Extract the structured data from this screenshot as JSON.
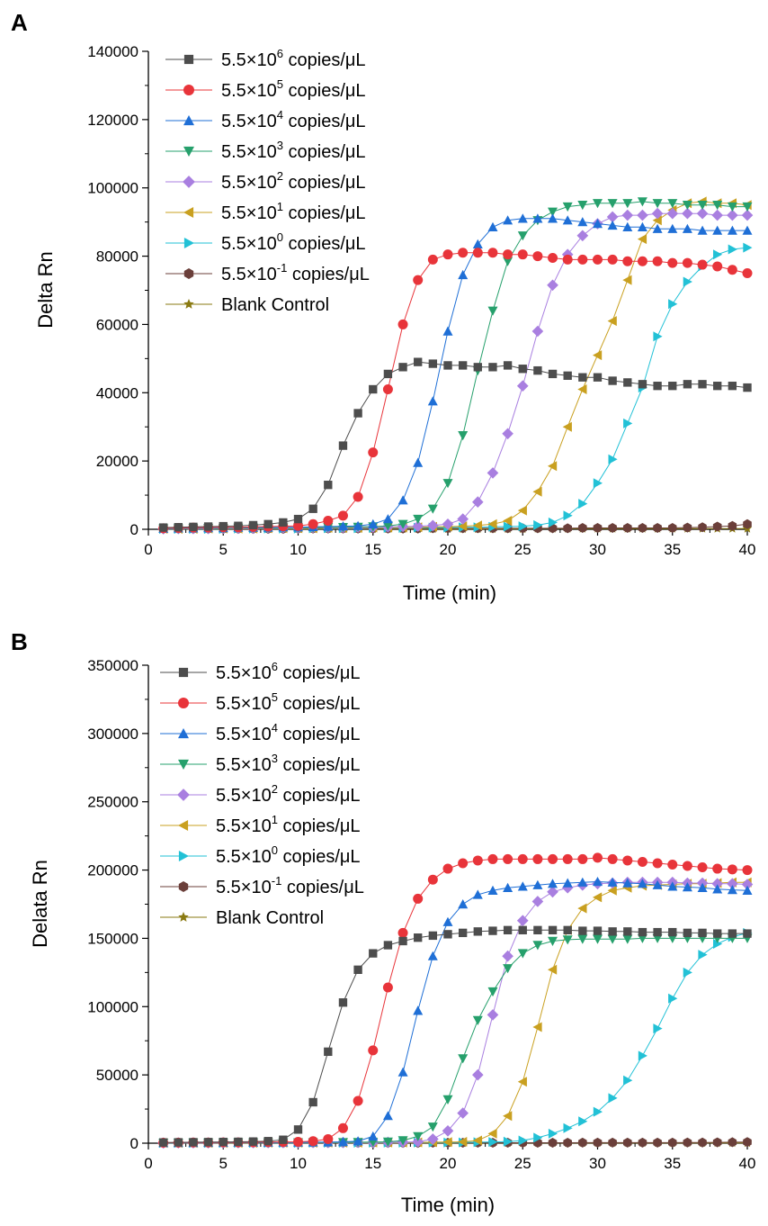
{
  "chart_data": [
    {
      "type": "line",
      "panel_label": "A",
      "title": "",
      "xlabel": "Time (min)",
      "ylabel": "Delta Rn",
      "xlim": [
        0,
        40
      ],
      "ylim": [
        0,
        140000
      ],
      "xticks": [
        0,
        5,
        10,
        15,
        20,
        25,
        30,
        35,
        40
      ],
      "yticks": [
        0,
        20000,
        40000,
        60000,
        80000,
        100000,
        120000,
        140000
      ],
      "legend_position": "top-left",
      "series": [
        {
          "name": "5.5×10⁶ copies/μL",
          "legend_base": "5.5×10",
          "legend_exp": "6",
          "legend_unit": " copies/μL",
          "marker": "square",
          "color": "#4d4d4d",
          "x0": 1,
          "values": [
            500,
            600,
            700,
            800,
            900,
            1000,
            1200,
            1500,
            2000,
            3000,
            6000,
            13000,
            24500,
            34000,
            41000,
            45500,
            47500,
            49000,
            48500,
            48000,
            48000,
            47500,
            47500,
            48000,
            47000,
            46500,
            45500,
            45000,
            44500,
            44500,
            43500,
            43000,
            42500,
            42000,
            42000,
            42500,
            42500,
            42000,
            42000,
            41500
          ]
        },
        {
          "name": "5.5×10⁵ copies/μL",
          "legend_base": "5.5×10",
          "legend_exp": "5",
          "legend_unit": " copies/μL",
          "marker": "circle",
          "color": "#e8343a",
          "x0": 1,
          "values": [
            300,
            400,
            500,
            500,
            600,
            600,
            700,
            800,
            900,
            1000,
            1500,
            2500,
            4000,
            9500,
            22500,
            41000,
            60000,
            73000,
            79000,
            80500,
            81000,
            81000,
            81000,
            80500,
            80500,
            80000,
            79500,
            79000,
            79000,
            79000,
            79000,
            78500,
            78500,
            78500,
            78000,
            78000,
            77500,
            77000,
            76000,
            75000
          ]
        },
        {
          "name": "5.5×10⁴ copies/μL",
          "legend_base": "5.5×10",
          "legend_exp": "4",
          "legend_unit": " copies/μL",
          "marker": "triangle-up",
          "color": "#1f6fd6",
          "x0": 1,
          "values": [
            200,
            300,
            300,
            400,
            400,
            500,
            500,
            500,
            600,
            600,
            700,
            800,
            900,
            1000,
            1500,
            3000,
            8500,
            19500,
            37500,
            58000,
            74500,
            83500,
            88500,
            90500,
            91000,
            91000,
            91000,
            90500,
            90000,
            89500,
            89000,
            88500,
            88500,
            88000,
            88000,
            88000,
            87500,
            87500,
            87500,
            87500
          ]
        },
        {
          "name": "5.5×10³ copies/μL",
          "legend_base": "5.5×10",
          "legend_exp": "3",
          "legend_unit": " copies/μL",
          "marker": "triangle-down",
          "color": "#26a06c",
          "x0": 1,
          "values": [
            200,
            200,
            300,
            300,
            300,
            400,
            400,
            400,
            500,
            500,
            500,
            600,
            600,
            700,
            800,
            1000,
            1500,
            3000,
            6000,
            13500,
            27500,
            46500,
            64000,
            78500,
            86000,
            90500,
            93000,
            94500,
            95000,
            95500,
            95500,
            95500,
            96000,
            95500,
            95500,
            95000,
            95000,
            95000,
            94500,
            94500
          ]
        },
        {
          "name": "5.5×10² copies/μL",
          "legend_base": "5.5×10",
          "legend_exp": "2",
          "legend_unit": " copies/μL",
          "marker": "diamond",
          "color": "#a97fe0",
          "x0": 1,
          "values": [
            100,
            200,
            200,
            200,
            300,
            300,
            300,
            400,
            400,
            400,
            500,
            500,
            500,
            600,
            600,
            700,
            800,
            900,
            1100,
            1500,
            3000,
            8000,
            16500,
            28000,
            42000,
            58000,
            71500,
            80500,
            86000,
            89500,
            91500,
            92000,
            92000,
            92500,
            92500,
            92500,
            92500,
            92000,
            92000,
            92000
          ]
        },
        {
          "name": "5.5×10¹ copies/μL",
          "legend_base": "5.5×10",
          "legend_exp": "1",
          "legend_unit": " copies/μL",
          "marker": "triangle-left",
          "color": "#c9a020",
          "x0": 1,
          "values": [
            100,
            100,
            100,
            200,
            200,
            200,
            200,
            300,
            300,
            300,
            300,
            400,
            400,
            400,
            500,
            500,
            500,
            600,
            700,
            800,
            900,
            1100,
            1500,
            2500,
            5500,
            11000,
            18500,
            30000,
            41000,
            51000,
            61000,
            73000,
            85000,
            90500,
            93500,
            95500,
            96000,
            95500,
            95500,
            95000
          ]
        },
        {
          "name": "5.5×10⁰ copies/μL",
          "legend_base": "5.5×10",
          "legend_exp": "0",
          "legend_unit": " copies/μL",
          "marker": "triangle-right",
          "color": "#22c1d6",
          "x0": 1,
          "values": [
            100,
            100,
            100,
            100,
            100,
            200,
            200,
            200,
            200,
            200,
            300,
            300,
            300,
            300,
            400,
            400,
            400,
            500,
            500,
            500,
            600,
            600,
            700,
            800,
            900,
            1200,
            2000,
            4000,
            7500,
            13500,
            20500,
            31000,
            41500,
            56500,
            66000,
            72500,
            77000,
            80500,
            82000,
            82500
          ]
        },
        {
          "name": "5.5×10⁻¹ copies/μL",
          "legend_base": "5.5×10",
          "legend_exp": "-1",
          "legend_unit": " copies/μL",
          "marker": "hexagon",
          "color": "#6b3f3a",
          "x0": 1,
          "values": [
            100,
            100,
            100,
            100,
            100,
            100,
            100,
            100,
            100,
            200,
            200,
            200,
            200,
            200,
            200,
            200,
            200,
            200,
            300,
            300,
            300,
            300,
            300,
            300,
            300,
            300,
            300,
            300,
            400,
            400,
            400,
            400,
            400,
            400,
            400,
            500,
            600,
            800,
            1000,
            1500
          ]
        },
        {
          "name": "Blank Control",
          "legend_base": "Blank Control",
          "legend_exp": "",
          "legend_unit": "",
          "marker": "star",
          "color": "#8a7a12",
          "x0": 1,
          "values": [
            100,
            100,
            100,
            100,
            100,
            100,
            100,
            100,
            100,
            100,
            100,
            100,
            100,
            100,
            100,
            100,
            100,
            100,
            100,
            100,
            100,
            100,
            100,
            100,
            100,
            200,
            200,
            200,
            200,
            200,
            200,
            200,
            200,
            200,
            200,
            200,
            200,
            200,
            200,
            200
          ]
        }
      ]
    },
    {
      "type": "line",
      "panel_label": "B",
      "title": "",
      "xlabel": "Time (min)",
      "ylabel": "Delata Rn",
      "xlim": [
        0,
        40
      ],
      "ylim": [
        0,
        350000
      ],
      "xticks": [
        0,
        5,
        10,
        15,
        20,
        25,
        30,
        35,
        40
      ],
      "yticks": [
        0,
        50000,
        100000,
        150000,
        200000,
        250000,
        300000,
        350000
      ],
      "legend_position": "top-left",
      "series": [
        {
          "name": "5.5×10⁶ copies/μL",
          "legend_base": "5.5×10",
          "legend_exp": "6",
          "legend_unit": " copies/μL",
          "marker": "square",
          "color": "#4d4d4d",
          "x0": 1,
          "values": [
            500,
            600,
            700,
            800,
            900,
            1000,
            1200,
            1500,
            2500,
            10000,
            30000,
            67000,
            103000,
            127000,
            139000,
            145000,
            148000,
            150500,
            152000,
            153000,
            154000,
            155000,
            155500,
            156000,
            156000,
            156000,
            156000,
            156000,
            155500,
            155500,
            155000,
            155000,
            154500,
            154500,
            154500,
            154000,
            154000,
            153500,
            153500,
            153500
          ]
        },
        {
          "name": "5.5×10⁵ copies/μL",
          "legend_base": "5.5×10",
          "legend_exp": "5",
          "legend_unit": " copies/μL",
          "marker": "circle",
          "color": "#e8343a",
          "x0": 1,
          "values": [
            300,
            400,
            500,
            500,
            600,
            600,
            700,
            800,
            900,
            1000,
            1500,
            3000,
            11000,
            31000,
            68000,
            114000,
            154000,
            179000,
            193000,
            201000,
            205000,
            207000,
            208000,
            208000,
            208000,
            208000,
            208000,
            208000,
            208000,
            209000,
            208000,
            207000,
            206000,
            205000,
            204000,
            203000,
            202000,
            201000,
            200500,
            200000
          ]
        },
        {
          "name": "5.5×10⁴ copies/μL",
          "legend_base": "5.5×10",
          "legend_exp": "4",
          "legend_unit": " copies/μL",
          "marker": "triangle-up",
          "color": "#1f6fd6",
          "x0": 1,
          "values": [
            200,
            300,
            300,
            400,
            400,
            500,
            500,
            500,
            600,
            600,
            700,
            800,
            1000,
            1500,
            5000,
            20000,
            52000,
            97000,
            137000,
            162000,
            175000,
            182000,
            185000,
            187000,
            188000,
            189000,
            190000,
            190500,
            191000,
            191500,
            191000,
            190500,
            190000,
            189000,
            188000,
            187500,
            187000,
            186000,
            185500,
            185000
          ]
        },
        {
          "name": "5.5×10³ copies/μL",
          "legend_base": "5.5×10",
          "legend_exp": "3",
          "legend_unit": " copies/μL",
          "marker": "triangle-down",
          "color": "#26a06c",
          "x0": 1,
          "values": [
            200,
            200,
            300,
            300,
            300,
            400,
            400,
            400,
            500,
            500,
            500,
            600,
            600,
            700,
            800,
            1000,
            2000,
            5000,
            12000,
            32000,
            62000,
            90000,
            111000,
            128000,
            139000,
            145000,
            148000,
            149000,
            149500,
            149500,
            149500,
            149500,
            150000,
            150000,
            150000,
            150000,
            150000,
            150000,
            150000,
            150000
          ]
        },
        {
          "name": "5.5×10² copies/μL",
          "legend_base": "5.5×10",
          "legend_exp": "2",
          "legend_unit": " copies/μL",
          "marker": "diamond",
          "color": "#a97fe0",
          "x0": 1,
          "values": [
            100,
            200,
            200,
            200,
            300,
            300,
            300,
            400,
            400,
            400,
            500,
            500,
            500,
            600,
            600,
            700,
            800,
            1000,
            3000,
            9000,
            22000,
            50000,
            94000,
            137000,
            163000,
            177000,
            184000,
            187000,
            189000,
            190000,
            190500,
            191000,
            191000,
            191000,
            191000,
            190500,
            190500,
            190000,
            190000,
            189500
          ]
        },
        {
          "name": "5.5×10¹ copies/μL",
          "legend_base": "5.5×10",
          "legend_exp": "1",
          "legend_unit": " copies/μL",
          "marker": "triangle-left",
          "color": "#c9a020",
          "x0": 1,
          "values": [
            100,
            100,
            100,
            200,
            200,
            200,
            200,
            300,
            300,
            300,
            300,
            400,
            400,
            400,
            500,
            500,
            500,
            600,
            700,
            800,
            1000,
            2000,
            7000,
            20000,
            45000,
            85000,
            127000,
            156000,
            172000,
            180000,
            185000,
            187000,
            188500,
            189000,
            189500,
            190000,
            190000,
            190500,
            191000,
            191000
          ]
        },
        {
          "name": "5.5×10⁰ copies/μL",
          "legend_base": "5.5×10",
          "legend_exp": "0",
          "legend_unit": " copies/μL",
          "marker": "triangle-right",
          "color": "#22c1d6",
          "x0": 1,
          "values": [
            100,
            100,
            100,
            100,
            100,
            200,
            200,
            200,
            200,
            200,
            300,
            300,
            300,
            300,
            400,
            400,
            400,
            500,
            500,
            500,
            600,
            700,
            900,
            1200,
            2000,
            4000,
            7000,
            11000,
            16000,
            23000,
            33000,
            46000,
            64000,
            84000,
            106000,
            125000,
            138000,
            146000,
            151000,
            154000
          ]
        },
        {
          "name": "5.5×10⁻¹ copies/μL",
          "legend_base": "5.5×10",
          "legend_exp": "-1",
          "legend_unit": " copies/μL",
          "marker": "hexagon",
          "color": "#6b3f3a",
          "x0": 1,
          "values": [
            100,
            100,
            100,
            100,
            100,
            100,
            100,
            100,
            100,
            200,
            200,
            200,
            200,
            200,
            200,
            200,
            200,
            200,
            300,
            300,
            300,
            300,
            300,
            300,
            300,
            300,
            300,
            300,
            400,
            400,
            400,
            400,
            400,
            400,
            400,
            500,
            500,
            600,
            700,
            800
          ]
        },
        {
          "name": "Blank Control",
          "legend_base": "Blank Control",
          "legend_exp": "",
          "legend_unit": "",
          "marker": "star",
          "color": "#8a7a12",
          "x0": 1,
          "values": [
            100,
            100,
            100,
            100,
            100,
            100,
            100,
            100,
            100,
            100,
            100,
            100,
            100,
            100,
            100,
            100,
            100,
            100,
            100,
            100,
            100,
            100,
            100,
            100,
            100,
            200,
            200,
            200,
            200,
            200,
            200,
            200,
            200,
            200,
            200,
            200,
            200,
            200,
            200,
            200
          ]
        }
      ]
    }
  ]
}
